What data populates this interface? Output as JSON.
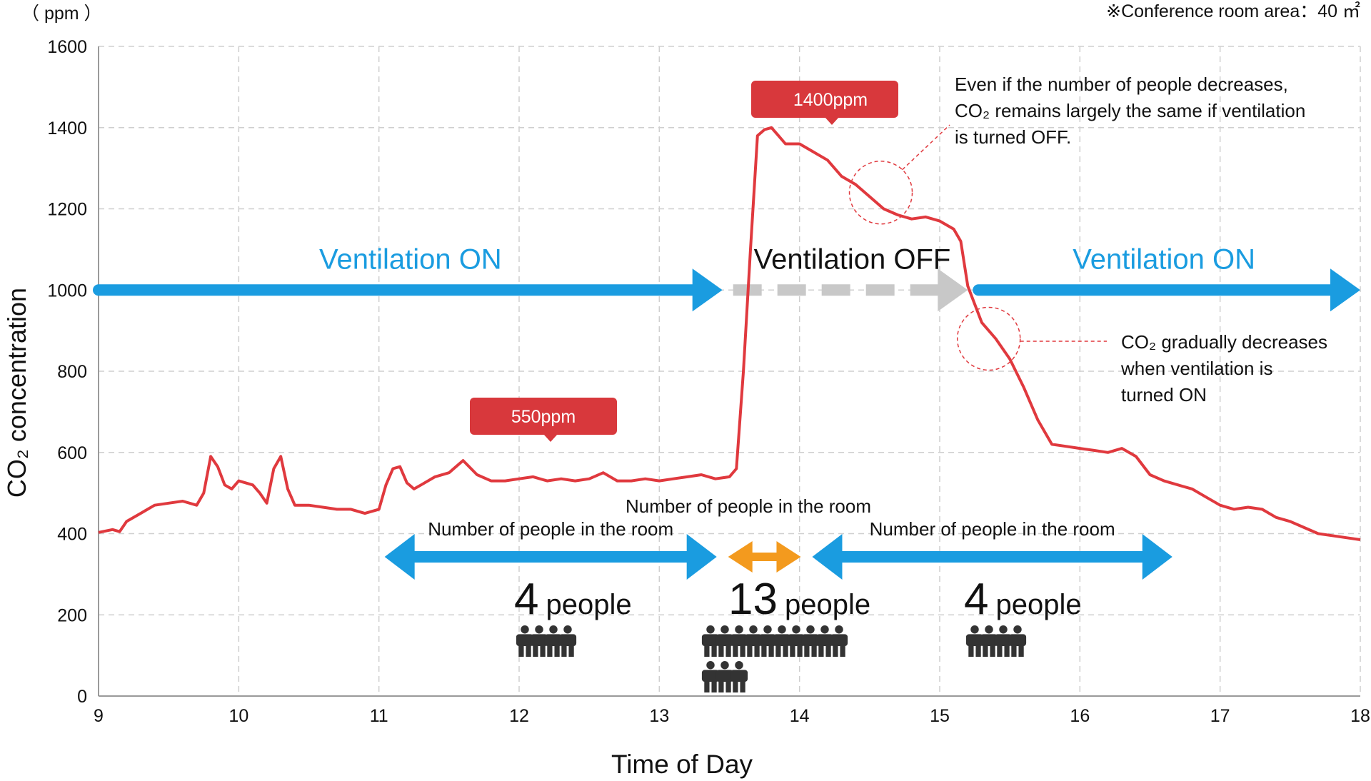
{
  "chart_data": {
    "type": "line",
    "unit_label": "（ ppm ）",
    "area_note": "※Conference room area：40 ㎡",
    "ylabel": "CO₂ concentration",
    "xlabel": "Time of Day",
    "xlim": [
      9,
      18
    ],
    "ylim": [
      0,
      1600
    ],
    "x_ticks": [
      9,
      10,
      11,
      12,
      13,
      14,
      15,
      16,
      17,
      18
    ],
    "y_ticks": [
      0,
      200,
      400,
      600,
      800,
      1000,
      1200,
      1400,
      1600
    ],
    "grid": true,
    "series": [
      {
        "color": "#e0393e",
        "x": [
          9.0,
          9.1,
          9.15,
          9.2,
          9.3,
          9.35,
          9.4,
          9.5,
          9.6,
          9.7,
          9.75,
          9.8,
          9.85,
          9.9,
          9.95,
          10.0,
          10.1,
          10.15,
          10.2,
          10.25,
          10.3,
          10.35,
          10.4,
          10.5,
          10.6,
          10.7,
          10.8,
          10.9,
          11.0,
          11.05,
          11.1,
          11.15,
          11.2,
          11.25,
          11.3,
          11.4,
          11.5,
          11.6,
          11.7,
          11.8,
          11.9,
          12.0,
          12.1,
          12.2,
          12.3,
          12.4,
          12.5,
          12.6,
          12.7,
          12.8,
          12.9,
          13.0,
          13.1,
          13.2,
          13.3,
          13.4,
          13.5,
          13.55,
          13.6,
          13.65,
          13.7,
          13.75,
          13.8,
          13.85,
          13.9,
          14.0,
          14.1,
          14.2,
          14.3,
          14.4,
          14.5,
          14.6,
          14.7,
          14.8,
          14.9,
          15.0,
          15.1,
          15.15,
          15.2,
          15.3,
          15.4,
          15.5,
          15.6,
          15.7,
          15.8,
          15.9,
          16.0,
          16.1,
          16.2,
          16.3,
          16.4,
          16.5,
          16.6,
          16.7,
          16.8,
          16.9,
          17.0,
          17.1,
          17.2,
          17.3,
          17.4,
          17.5,
          17.6,
          17.7,
          17.8,
          17.9,
          18.0
        ],
        "y": [
          403,
          410,
          405,
          430,
          450,
          460,
          470,
          475,
          480,
          470,
          500,
          590,
          565,
          520,
          510,
          530,
          520,
          500,
          475,
          560,
          590,
          510,
          470,
          470,
          465,
          460,
          460,
          450,
          460,
          520,
          560,
          565,
          525,
          510,
          520,
          540,
          550,
          580,
          545,
          530,
          530,
          535,
          540,
          530,
          535,
          530,
          535,
          550,
          530,
          530,
          535,
          530,
          535,
          540,
          545,
          535,
          540,
          560,
          800,
          1100,
          1380,
          1395,
          1400,
          1380,
          1360,
          1360,
          1340,
          1320,
          1280,
          1260,
          1230,
          1200,
          1185,
          1175,
          1180,
          1170,
          1150,
          1120,
          1010,
          920,
          880,
          830,
          760,
          680,
          620,
          615,
          610,
          605,
          600,
          610,
          590,
          545,
          530,
          520,
          510,
          490,
          470,
          460,
          465,
          460,
          440,
          430,
          415,
          400,
          395,
          390,
          385
        ]
      }
    ],
    "badges": [
      {
        "text": "1400ppm",
        "x": 13.95,
        "y": 1400
      },
      {
        "text": "550ppm",
        "x": 12.2,
        "y": 550
      }
    ],
    "ventilation_bands": [
      {
        "label": "Ventilation ON",
        "state": "on",
        "from": 9.0,
        "to": 13.45,
        "y": 1000
      },
      {
        "label": "Ventilation OFF",
        "state": "off",
        "from": 13.45,
        "to": 15.2,
        "y": 1000
      },
      {
        "label": "Ventilation ON",
        "state": "on",
        "from": 15.2,
        "to": 18.0,
        "y": 1000
      }
    ],
    "occupancy": [
      {
        "label": "Number of people in the room",
        "from": 11.0,
        "to": 13.45,
        "count": "4",
        "unit": "people",
        "icons": 4,
        "color": "#1a9ce0"
      },
      {
        "label": "Number of people in the room",
        "from": 13.45,
        "to": 14.05,
        "count": "13",
        "unit": "people",
        "icons": 13,
        "color": "#f39a1e"
      },
      {
        "label": "Number of people in the room",
        "from": 14.05,
        "to": 16.7,
        "count": "4",
        "unit": "people",
        "icons": 4,
        "color": "#1a9ce0"
      }
    ],
    "annotations": [
      {
        "lines": [
          "Even if the number of people decreases,",
          "CO₂ remains largely the same if ventilation",
          "is turned OFF."
        ],
        "circle_x": 14.58,
        "circle_y": 1240
      },
      {
        "lines": [
          "CO₂ gradually decreases",
          "when ventilation is",
          "turned ON"
        ],
        "circle_x": 15.35,
        "circle_y": 880
      }
    ]
  }
}
